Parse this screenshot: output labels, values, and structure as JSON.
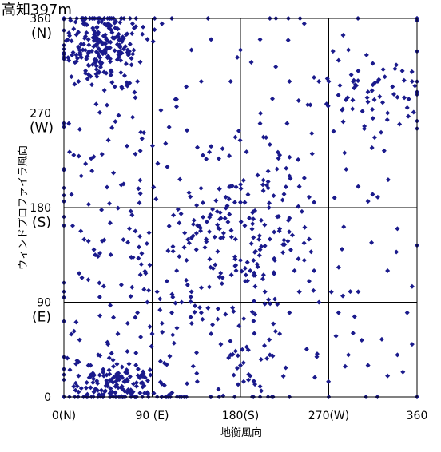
{
  "chart_data": {
    "type": "scatter",
    "title": "高知397m",
    "xlabel": "地衡風向",
    "ylabel": "ウィンドプロファイラ風向",
    "xlim": [
      0,
      360
    ],
    "ylim": [
      0,
      360
    ],
    "grid": true,
    "marker_color": "#1a1a8c",
    "x_ticks": [
      {
        "value": 0,
        "label": "0(N)"
      },
      {
        "value": 90,
        "label": "90 (E)"
      },
      {
        "value": 180,
        "label": "180(S)"
      },
      {
        "value": 270,
        "label": "270(W)"
      },
      {
        "value": 360,
        "label": "360"
      }
    ],
    "y_ticks": [
      {
        "value": 0,
        "label": "0",
        "dir": ""
      },
      {
        "value": 90,
        "label": "90",
        "dir": "(E)"
      },
      {
        "value": 180,
        "label": "180",
        "dir": "(S)"
      },
      {
        "value": 270,
        "label": "270",
        "dir": "(W)"
      },
      {
        "value": 360,
        "label": "360",
        "dir": "(N)"
      }
    ],
    "clusters": [
      {
        "cx": 40,
        "cy": 335,
        "sx": 22,
        "sy": 20,
        "n": 220
      },
      {
        "cx": 50,
        "cy": 12,
        "sx": 22,
        "sy": 12,
        "n": 140
      },
      {
        "cx": 40,
        "cy": 160,
        "sx": 35,
        "sy": 110,
        "n": 110
      },
      {
        "cx": 180,
        "cy": 150,
        "sx": 40,
        "sy": 50,
        "n": 170
      },
      {
        "cx": 115,
        "cy": 110,
        "sx": 50,
        "sy": 90,
        "n": 110
      },
      {
        "cx": 320,
        "cy": 280,
        "sx": 35,
        "sy": 25,
        "n": 50
      },
      {
        "cx": 190,
        "cy": 20,
        "sx": 70,
        "sy": 25,
        "n": 40
      },
      {
        "cx": 240,
        "cy": 240,
        "sx": 90,
        "sy": 100,
        "n": 60
      }
    ],
    "points": [
      [
        0,
        360
      ],
      [
        0,
        0
      ],
      [
        360,
        0
      ],
      [
        360,
        290
      ],
      [
        5,
        320
      ],
      [
        10,
        350
      ],
      [
        20,
        355
      ],
      [
        25,
        340
      ],
      [
        30,
        360
      ],
      [
        35,
        345
      ],
      [
        45,
        355
      ],
      [
        55,
        350
      ],
      [
        60,
        340
      ],
      [
        65,
        330
      ],
      [
        70,
        355
      ],
      [
        80,
        345
      ],
      [
        75,
        300
      ],
      [
        15,
        300
      ],
      [
        5,
        260
      ],
      [
        10,
        230
      ],
      [
        100,
        355
      ],
      [
        110,
        360
      ],
      [
        130,
        330
      ],
      [
        140,
        300
      ],
      [
        150,
        340
      ],
      [
        170,
        300
      ],
      [
        180,
        330
      ],
      [
        200,
        340
      ],
      [
        210,
        360
      ],
      [
        230,
        300
      ],
      [
        245,
        355
      ],
      [
        260,
        300
      ],
      [
        200,
        260
      ],
      [
        210,
        240
      ],
      [
        220,
        230
      ],
      [
        230,
        210
      ],
      [
        240,
        200
      ],
      [
        250,
        190
      ],
      [
        255,
        185
      ],
      [
        180,
        185
      ],
      [
        175,
        150
      ],
      [
        180,
        130
      ],
      [
        190,
        120
      ],
      [
        200,
        140
      ],
      [
        210,
        150
      ],
      [
        220,
        160
      ],
      [
        230,
        170
      ],
      [
        185,
        110
      ],
      [
        195,
        105
      ],
      [
        205,
        100
      ],
      [
        215,
        130
      ],
      [
        225,
        145
      ],
      [
        235,
        120
      ],
      [
        240,
        100
      ],
      [
        245,
        130
      ],
      [
        250,
        150
      ],
      [
        255,
        120
      ],
      [
        170,
        200
      ],
      [
        165,
        190
      ],
      [
        160,
        170
      ],
      [
        300,
        200
      ],
      [
        320,
        190
      ],
      [
        340,
        160
      ],
      [
        355,
        105
      ],
      [
        355,
        50
      ],
      [
        350,
        80
      ],
      [
        330,
        120
      ],
      [
        300,
        100
      ],
      [
        280,
        80
      ],
      [
        290,
        40
      ],
      [
        310,
        30
      ],
      [
        330,
        20
      ],
      [
        340,
        40
      ],
      [
        270,
        0
      ],
      [
        230,
        0
      ],
      [
        200,
        0
      ],
      [
        150,
        0
      ],
      [
        120,
        0
      ],
      [
        100,
        0
      ],
      [
        80,
        0
      ],
      [
        60,
        0
      ],
      [
        40,
        0
      ],
      [
        20,
        0
      ],
      [
        10,
        10
      ],
      [
        15,
        20
      ],
      [
        25,
        30
      ],
      [
        35,
        40
      ],
      [
        45,
        50
      ],
      [
        55,
        60
      ],
      [
        65,
        70
      ],
      [
        75,
        80
      ],
      [
        85,
        90
      ],
      [
        95,
        100
      ],
      [
        105,
        110
      ],
      [
        115,
        120
      ],
      [
        125,
        130
      ],
      [
        135,
        140
      ],
      [
        145,
        150
      ],
      [
        90,
        60
      ],
      [
        100,
        70
      ],
      [
        110,
        80
      ],
      [
        120,
        90
      ],
      [
        130,
        100
      ],
      [
        140,
        80
      ],
      [
        150,
        60
      ],
      [
        160,
        50
      ],
      [
        170,
        40
      ],
      [
        180,
        30
      ],
      [
        190,
        20
      ],
      [
        200,
        10
      ],
      [
        210,
        40
      ],
      [
        220,
        60
      ],
      [
        230,
        80
      ],
      [
        240,
        100
      ],
      [
        250,
        110
      ],
      [
        260,
        90
      ],
      [
        270,
        300
      ],
      [
        280,
        320
      ],
      [
        290,
        330
      ],
      [
        300,
        310
      ],
      [
        310,
        290
      ],
      [
        320,
        300
      ],
      [
        330,
        270
      ],
      [
        340,
        285
      ],
      [
        350,
        275
      ],
      [
        355,
        300
      ],
      [
        345,
        310
      ],
      [
        335,
        295
      ],
      [
        325,
        280
      ],
      [
        315,
        265
      ]
    ]
  }
}
